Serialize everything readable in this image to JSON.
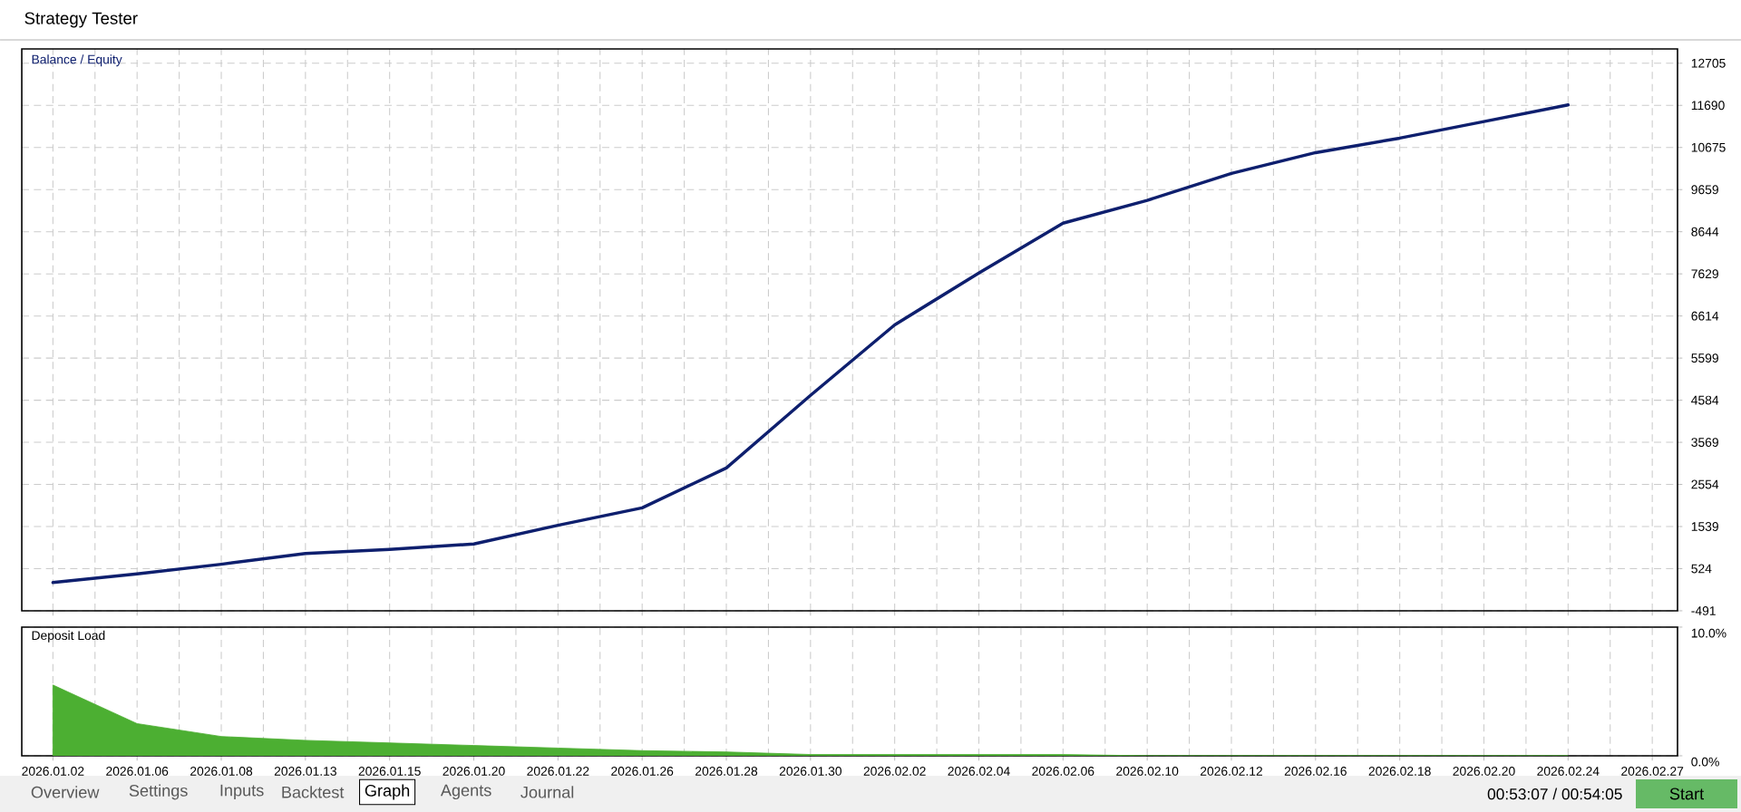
{
  "chart_data": [
    {
      "type": "line",
      "title": "Strategy Tester",
      "legend_title": "Balance / Equity",
      "grid": true,
      "tick_labels": "y",
      "categories": [
        null,
        null,
        null,
        null,
        null,
        null,
        null,
        null,
        null,
        null,
        null,
        null,
        null,
        null,
        null,
        null,
        null,
        null,
        null,
        null
      ],
      "ylim": [
        -491,
        13050
      ],
      "yticks": [
        -491,
        524,
        1539,
        2554,
        3569,
        4584,
        5599,
        6614,
        7629,
        8644,
        9659,
        10675,
        11690,
        12705
      ],
      "series": [
        {
          "color": "#0e1f6e",
          "values": [
            190,
            400,
            630,
            890,
            990,
            1120,
            1570,
            1990,
            2950,
            4700,
            6400,
            7650,
            8850,
            9400,
            10050,
            10550,
            10900,
            11300,
            11700,
            null
          ]
        }
      ]
    },
    {
      "type": "area",
      "title": "Deposit Load",
      "grid": true,
      "color": "#4caf32",
      "categories": [
        "2026.01.02",
        "2026.01.06",
        "2026.01.08",
        "2026.01.13",
        "2026.01.15",
        "2026.01.20",
        "2026.01.22",
        "2026.01.26",
        "2026.01.28",
        "2026.01.30",
        "2026.02.02",
        "2026.02.04",
        "2026.02.06",
        "2026.02.10",
        "2026.02.12",
        "2026.02.16",
        "2026.02.18",
        "2026.02.20",
        "2026.02.24",
        "2026.02.27"
      ],
      "values": [
        5.5,
        2.5,
        1.5,
        1.2,
        1.0,
        0.8,
        0.6,
        0.4,
        0.3,
        0.1,
        0.1,
        0.1,
        0.1,
        0,
        0,
        0,
        0,
        0,
        0,
        null
      ],
      "ylim": [
        0,
        10
      ],
      "yticks": [
        {
          "value": 0,
          "label": "0.0%"
        },
        {
          "value": 10,
          "label": "10.0%"
        }
      ],
      "annotations": [
        "Overview",
        "Settings",
        "Inputs",
        "Backtest",
        "Graph",
        "Agents",
        "Journal",
        "00:53:07 / 00:54:05",
        "Start"
      ]
    }
  ]
}
